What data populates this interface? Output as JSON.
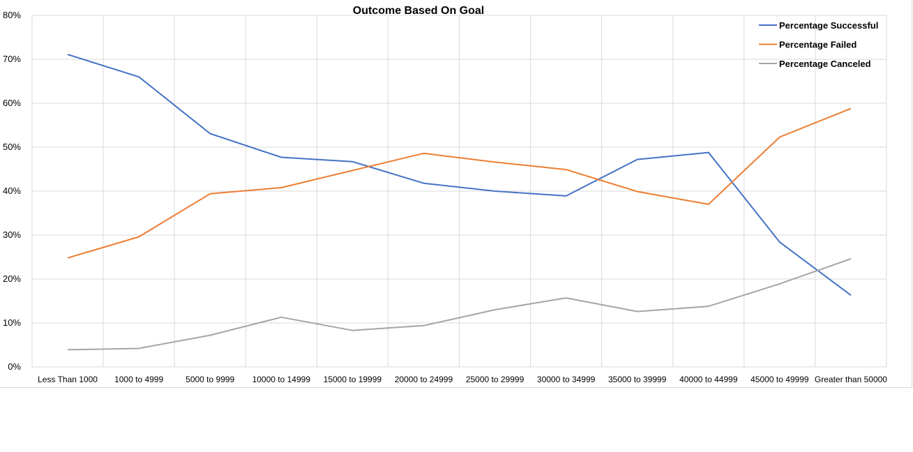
{
  "chart_data": {
    "type": "line",
    "title": "Outcome Based On Goal",
    "xlabel": "",
    "ylabel": "",
    "categories": [
      "Less Than 1000",
      "1000 to 4999",
      "5000 to 9999",
      "10000 to 14999",
      "15000 to 19999",
      "20000 to 24999",
      "25000 to 29999",
      "30000 to 34999",
      "35000 to 39999",
      "40000 to 44999",
      "45000 to 49999",
      "Greater than 50000"
    ],
    "y_ticks": [
      "0%",
      "10%",
      "20%",
      "30%",
      "40%",
      "50%",
      "60%",
      "70%",
      "80%"
    ],
    "ylim": [
      0,
      80
    ],
    "y_unit": "%",
    "grid": true,
    "legend_position": "top-right",
    "series": [
      {
        "name": "Percentage Successful",
        "color": "#4472c4",
        "values": [
          71.1,
          66.0,
          53.1,
          47.7,
          46.7,
          41.8,
          40.0,
          38.9,
          47.2,
          48.8,
          28.4,
          16.3
        ]
      },
      {
        "name": "Percentage Failed",
        "color": "#ed7d31",
        "values": [
          24.8,
          29.6,
          39.4,
          40.8,
          44.7,
          48.6,
          46.6,
          44.9,
          39.9,
          37.0,
          52.3,
          58.8
        ]
      },
      {
        "name": "Percentage Canceled",
        "color": "#a5a5a5",
        "values": [
          3.9,
          4.2,
          7.2,
          11.3,
          8.3,
          9.4,
          13.0,
          15.7,
          12.6,
          13.8,
          18.9,
          24.6
        ]
      }
    ]
  }
}
